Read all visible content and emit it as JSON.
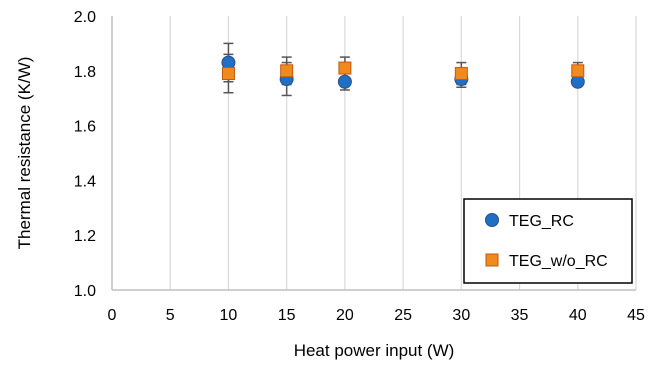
{
  "chart_data": {
    "type": "scatter",
    "title": "",
    "xlabel": "Heat power input (W)",
    "ylabel": "Thermal resistance (K/W)",
    "xlim": [
      0,
      45
    ],
    "ylim": [
      1.0,
      2.0
    ],
    "xticks": [
      "0",
      "5",
      "10",
      "15",
      "20",
      "25",
      "30",
      "35",
      "40",
      "45"
    ],
    "yticks": [
      "1.0",
      "1.2",
      "1.4",
      "1.6",
      "1.8",
      "2.0"
    ],
    "grid": "vertical",
    "legend_position": "bottom-right",
    "series": [
      {
        "name": "TEG_RC",
        "marker": "circle",
        "color": "#1f6fc4",
        "edge_color": "#2a4f87",
        "x": [
          10,
          15,
          20,
          30,
          40
        ],
        "y": [
          1.83,
          1.77,
          1.76,
          1.77,
          1.76
        ],
        "error": [
          0.07,
          0.06,
          0.03,
          0.03,
          0.01
        ]
      },
      {
        "name": "TEG_w/o_RC",
        "marker": "square",
        "color": "#f08a1c",
        "edge_color": "#c25a10",
        "x": [
          10,
          15,
          20,
          30,
          40
        ],
        "y": [
          1.79,
          1.8,
          1.81,
          1.79,
          1.8
        ],
        "error": [
          0.07,
          0.05,
          0.04,
          0.04,
          0.03
        ]
      }
    ]
  }
}
